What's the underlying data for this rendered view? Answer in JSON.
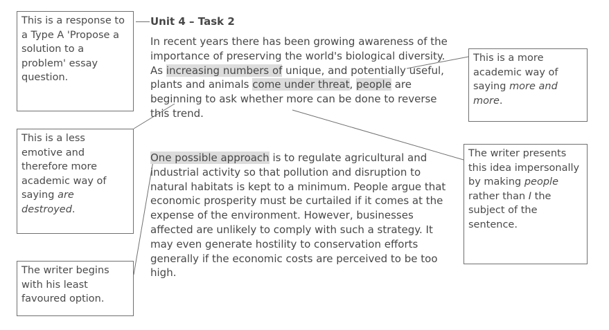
{
  "title": "Unit 4 – Task 2",
  "paragraph1": {
    "before": "In recent years there has been growing awareness of the importance of preserving the world's biological diversity. As ",
    "highlight_1": "increasing numbers of",
    "middle_1": " unique, and potentially useful, plants and animals ",
    "highlight_2": "come under threat",
    "middle_2": ", ",
    "highlight_3": "people",
    "after": " are beginning to ask whether more can be done to reverse this trend."
  },
  "paragraph2": {
    "highlight": "One possible approach",
    "after": " is to regulate agricultural and industrial activity so that pollution and disruption to natural habitats is kept to a minimum. People argue that economic prosperity must be curtailed if it comes at the expense of the environment. However, businesses affected are unlikely to comply with such a strategy. It may even generate hostility to conservation efforts generally if the economic costs are perceived to be too high."
  },
  "notes": {
    "type_a": "This is a response to a Type A 'Propose a solution to a problem' essay question.",
    "less_emotive": {
      "before": "This is a less emotive and therefore more academic way of saying ",
      "italic": "are destroyed",
      "after": "."
    },
    "least_favoured": "The writer begins with his least favoured option.",
    "more_academic": {
      "before": "This is a more academic way of saying ",
      "italic": "more and more",
      "after": "."
    },
    "impersonal": {
      "before": "The writer presents this idea impersonally by making ",
      "italic_1": "people",
      "middle": " rather than ",
      "italic_2": "I",
      "after": " the subject of the sentence."
    }
  }
}
